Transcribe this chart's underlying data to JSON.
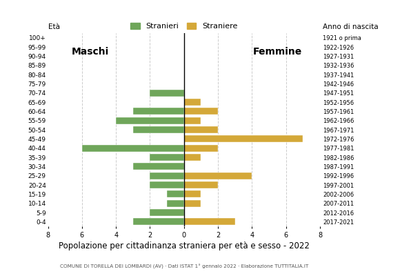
{
  "age_groups": [
    "100+",
    "95-99",
    "90-94",
    "85-89",
    "80-84",
    "75-79",
    "70-74",
    "65-69",
    "60-64",
    "55-59",
    "50-54",
    "45-49",
    "40-44",
    "35-39",
    "30-34",
    "25-29",
    "20-24",
    "15-19",
    "10-14",
    "5-9",
    "0-4"
  ],
  "birth_years": [
    "1921 o prima",
    "1922-1926",
    "1927-1931",
    "1932-1936",
    "1937-1941",
    "1942-1946",
    "1947-1951",
    "1952-1956",
    "1957-1961",
    "1962-1966",
    "1967-1971",
    "1972-1976",
    "1977-1981",
    "1982-1986",
    "1987-1991",
    "1992-1996",
    "1997-2001",
    "2002-2006",
    "2007-2011",
    "2012-2016",
    "2017-2021"
  ],
  "males": [
    0,
    0,
    0,
    0,
    0,
    0,
    2,
    0,
    3,
    4,
    3,
    0,
    6,
    2,
    3,
    2,
    2,
    1,
    1,
    2,
    3
  ],
  "females": [
    0,
    0,
    0,
    0,
    0,
    0,
    0,
    1,
    2,
    1,
    2,
    7,
    2,
    1,
    0,
    4,
    2,
    1,
    1,
    0,
    3
  ],
  "male_color": "#6fa65a",
  "female_color": "#d4a838",
  "title": "Popolazione per cittadinanza straniera per età e sesso - 2022",
  "subtitle": "COMUNE DI TORELLA DEI LOMBARDI (AV) · Dati ISTAT 1° gennaio 2022 · Elaborazione TUTTITALIA.IT",
  "xlabel_left": "Maschi",
  "xlabel_right": "Femmine",
  "legend_male": "Stranieri",
  "legend_female": "Straniere",
  "age_label": "Età",
  "birth_label": "Anno di nascita",
  "xlim": 8,
  "background_color": "#ffffff",
  "grid_color": "#cccccc"
}
